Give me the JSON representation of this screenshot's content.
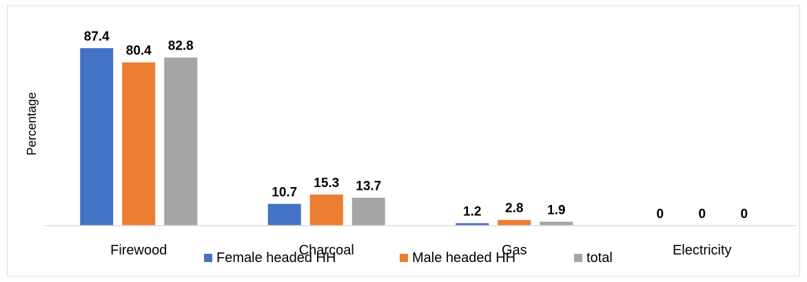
{
  "chart_data": {
    "type": "bar",
    "title": "",
    "xlabel": "",
    "ylabel": "Percentage",
    "ylim": [
      0,
      100
    ],
    "grid": false,
    "legend_position": "bottom",
    "categories": [
      "Firewood",
      "Charcoal",
      "Gas",
      "Electricity"
    ],
    "series": [
      {
        "name": "Female headed HH",
        "color": "#4472c4",
        "values": [
          87.4,
          10.7,
          1.2,
          0
        ]
      },
      {
        "name": "Male headed HH",
        "color": "#ed7d31",
        "values": [
          80.4,
          15.3,
          2.8,
          0
        ]
      },
      {
        "name": "total",
        "color": "#a5a5a5",
        "values": [
          82.8,
          13.7,
          1.9,
          0
        ]
      }
    ]
  }
}
